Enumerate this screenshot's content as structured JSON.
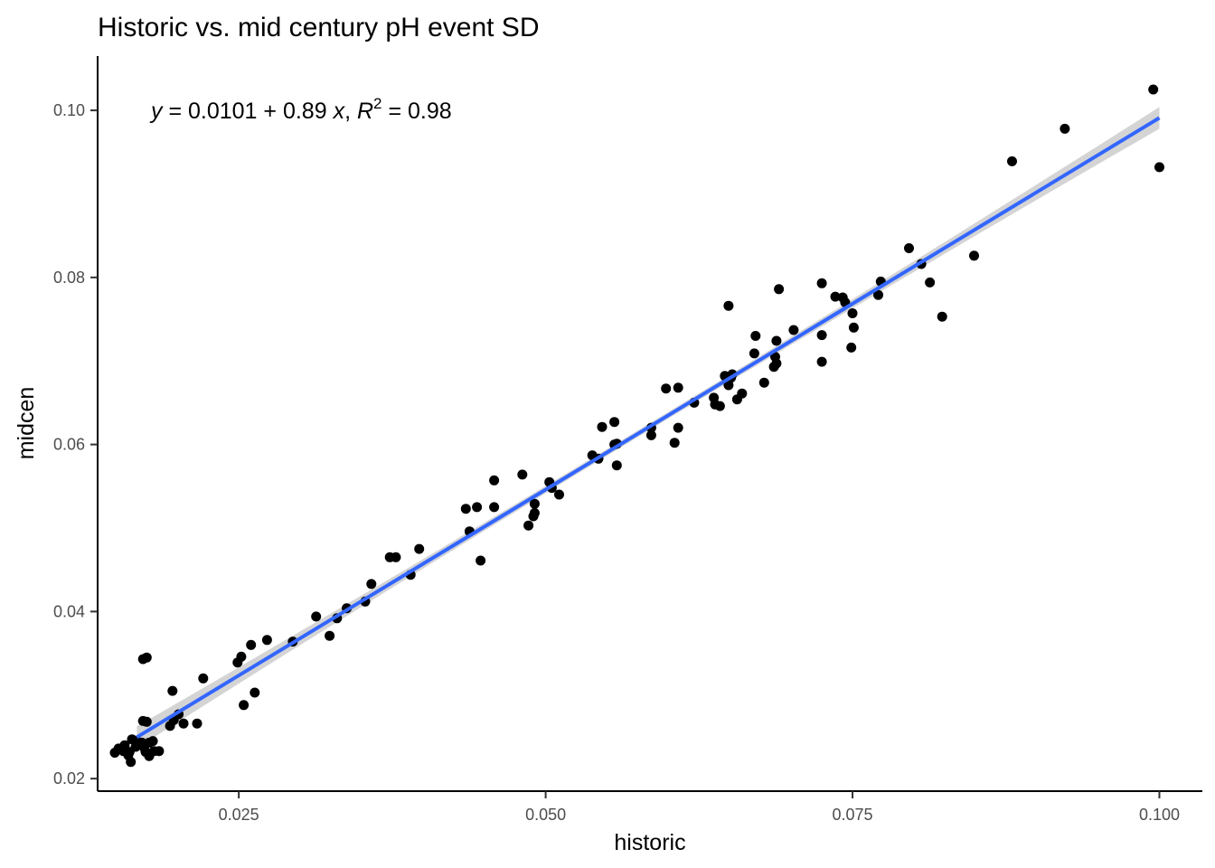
{
  "chart_data": {
    "type": "scatter",
    "title": "Historic vs. mid century pH event SD",
    "xlabel": "historic",
    "ylabel": "midcen",
    "xlim": [
      0.0135,
      0.1035
    ],
    "ylim": [
      0.0185,
      0.1065
    ],
    "x_ticks": [
      0.025,
      0.05,
      0.075,
      0.1
    ],
    "x_tick_labels": [
      "0.025",
      "0.050",
      "0.075",
      "0.100"
    ],
    "y_ticks": [
      0.02,
      0.04,
      0.06,
      0.08,
      0.1
    ],
    "y_tick_labels": [
      "0.02",
      "0.04",
      "0.06",
      "0.08",
      "0.10"
    ],
    "grid": false,
    "equation": {
      "y_var": "y",
      "eq_sign": " = 0.0101 + 0.89 ",
      "x_var": "x",
      "sep": ", ",
      "r_var": "R",
      "r_sup": "2",
      "r_value": " = 0.98"
    },
    "fit": {
      "intercept": 0.0101,
      "slope": 0.89,
      "x_range": [
        0.0167,
        0.1
      ],
      "color": "#3366ff",
      "ci_color": "#cccccc"
    },
    "point_color": "#000000",
    "points": [
      [
        0.0995,
        0.1025
      ],
      [
        0.1,
        0.0932
      ],
      [
        0.0923,
        0.0978
      ],
      [
        0.088,
        0.0939
      ],
      [
        0.0849,
        0.0826
      ],
      [
        0.0796,
        0.0835
      ],
      [
        0.0806,
        0.0816
      ],
      [
        0.0813,
        0.0794
      ],
      [
        0.0823,
        0.0753
      ],
      [
        0.0773,
        0.0795
      ],
      [
        0.0771,
        0.0779
      ],
      [
        0.0736,
        0.0777
      ],
      [
        0.0742,
        0.0776
      ],
      [
        0.0744,
        0.077
      ],
      [
        0.0725,
        0.0793
      ],
      [
        0.075,
        0.0757
      ],
      [
        0.0751,
        0.074
      ],
      [
        0.0749,
        0.0716
      ],
      [
        0.0725,
        0.0731
      ],
      [
        0.0725,
        0.0699
      ],
      [
        0.069,
        0.0786
      ],
      [
        0.0702,
        0.0737
      ],
      [
        0.0671,
        0.073
      ],
      [
        0.0688,
        0.0724
      ],
      [
        0.067,
        0.0709
      ],
      [
        0.0687,
        0.0705
      ],
      [
        0.0688,
        0.0697
      ],
      [
        0.0686,
        0.0693
      ],
      [
        0.0678,
        0.0674
      ],
      [
        0.0649,
        0.0766
      ],
      [
        0.0646,
        0.0682
      ],
      [
        0.0651,
        0.068
      ],
      [
        0.0652,
        0.0684
      ],
      [
        0.0649,
        0.0671
      ],
      [
        0.066,
        0.0661
      ],
      [
        0.0656,
        0.0654
      ],
      [
        0.0637,
        0.0656
      ],
      [
        0.0638,
        0.0648
      ],
      [
        0.0642,
        0.0646
      ],
      [
        0.0621,
        0.065
      ],
      [
        0.0608,
        0.0668
      ],
      [
        0.0598,
        0.0667
      ],
      [
        0.0608,
        0.062
      ],
      [
        0.0605,
        0.0602
      ],
      [
        0.0586,
        0.062
      ],
      [
        0.0586,
        0.0611
      ],
      [
        0.0556,
        0.0627
      ],
      [
        0.0546,
        0.0621
      ],
      [
        0.0556,
        0.06
      ],
      [
        0.0558,
        0.0601
      ],
      [
        0.0538,
        0.0587
      ],
      [
        0.0543,
        0.0583
      ],
      [
        0.0558,
        0.0575
      ],
      [
        0.0481,
        0.0564
      ],
      [
        0.0458,
        0.0557
      ],
      [
        0.0503,
        0.0555
      ],
      [
        0.0505,
        0.0548
      ],
      [
        0.0511,
        0.054
      ],
      [
        0.0435,
        0.0523
      ],
      [
        0.0444,
        0.0525
      ],
      [
        0.0458,
        0.0525
      ],
      [
        0.0491,
        0.0529
      ],
      [
        0.0491,
        0.0518
      ],
      [
        0.049,
        0.0514
      ],
      [
        0.0486,
        0.0503
      ],
      [
        0.0438,
        0.0496
      ],
      [
        0.0447,
        0.0461
      ],
      [
        0.0397,
        0.0475
      ],
      [
        0.0373,
        0.0465
      ],
      [
        0.0378,
        0.0465
      ],
      [
        0.039,
        0.0444
      ],
      [
        0.0358,
        0.0433
      ],
      [
        0.0353,
        0.0412
      ],
      [
        0.0338,
        0.0404
      ],
      [
        0.033,
        0.0392
      ],
      [
        0.0313,
        0.0394
      ],
      [
        0.0324,
        0.0371
      ],
      [
        0.0294,
        0.0364
      ],
      [
        0.0273,
        0.0366
      ],
      [
        0.026,
        0.036
      ],
      [
        0.0252,
        0.0346
      ],
      [
        0.0249,
        0.0339
      ],
      [
        0.0263,
        0.0303
      ],
      [
        0.0254,
        0.0288
      ],
      [
        0.0175,
        0.0345
      ],
      [
        0.0172,
        0.0343
      ],
      [
        0.0221,
        0.032
      ],
      [
        0.0196,
        0.0305
      ],
      [
        0.0201,
        0.0277
      ],
      [
        0.0197,
        0.027
      ],
      [
        0.0205,
        0.0266
      ],
      [
        0.0216,
        0.0266
      ],
      [
        0.0194,
        0.0263
      ],
      [
        0.0172,
        0.0269
      ],
      [
        0.0175,
        0.0268
      ],
      [
        0.0163,
        0.0247
      ],
      [
        0.0167,
        0.0245
      ],
      [
        0.0171,
        0.0243
      ],
      [
        0.0177,
        0.0243
      ],
      [
        0.018,
        0.0245
      ],
      [
        0.0157,
        0.024
      ],
      [
        0.0166,
        0.0238
      ],
      [
        0.0173,
        0.0237
      ],
      [
        0.0152,
        0.0236
      ],
      [
        0.0156,
        0.0233
      ],
      [
        0.0149,
        0.0231
      ],
      [
        0.0161,
        0.0232
      ],
      [
        0.0174,
        0.0232
      ],
      [
        0.0181,
        0.0233
      ],
      [
        0.0185,
        0.0233
      ],
      [
        0.016,
        0.0228
      ],
      [
        0.0177,
        0.0227
      ],
      [
        0.0162,
        0.022
      ]
    ]
  }
}
